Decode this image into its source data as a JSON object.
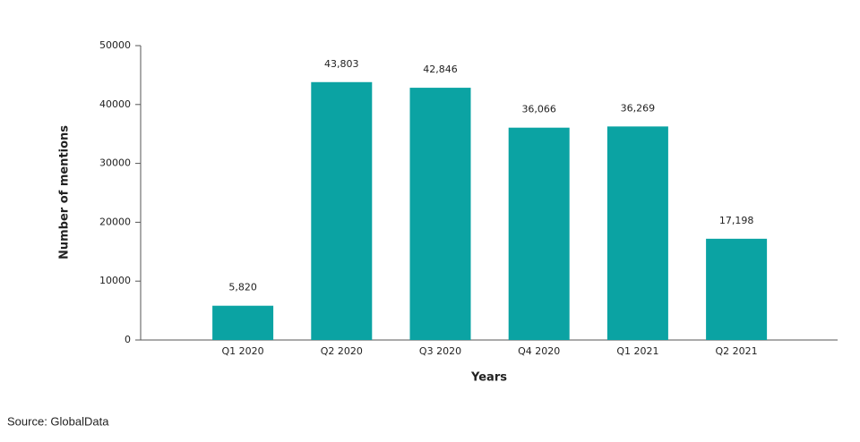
{
  "chart_data": {
    "type": "bar",
    "x_label": "Years",
    "y_label": "Number of mentions",
    "source": "Source: GlobalData",
    "categories": [
      "Q1 2020",
      "Q2 2020",
      "Q3 2020",
      "Q4 2020",
      "Q1 2021",
      "Q2 2021"
    ],
    "values": [
      5820,
      43803,
      42846,
      36066,
      36269,
      17198
    ],
    "value_labels": [
      "5,820",
      "43,803",
      "42,846",
      "36,066",
      "36,269",
      "17,198"
    ],
    "color": "#0ba3a3",
    "ylim": [
      0,
      50000
    ],
    "yticks": [
      0,
      10000,
      20000,
      30000,
      40000,
      50000
    ],
    "grid": false
  }
}
